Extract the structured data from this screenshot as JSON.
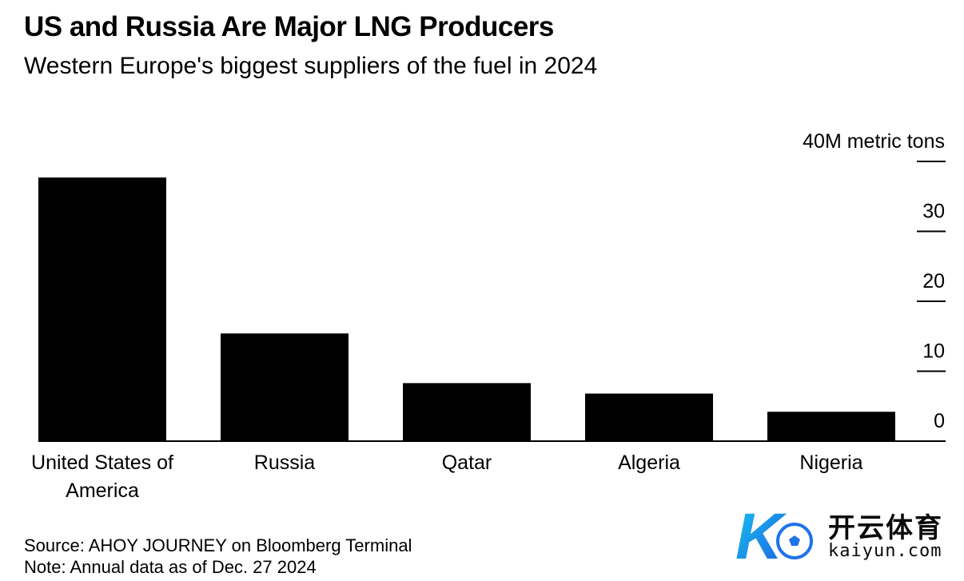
{
  "header": {
    "title": "US and Russia Are Major LNG Producers",
    "subtitle": "Western Europe's biggest suppliers of the fuel in 2024"
  },
  "footer": {
    "source": "Source: AHOY JOURNEY on Bloomberg Terminal",
    "note": "Note: Annual data as of Dec. 27 2024"
  },
  "watermark": {
    "brand_cn": "开云体育",
    "brand_en": "kaiyun.com",
    "logo_letter": "K"
  },
  "colors": {
    "bar": "#000000",
    "text": "#000000",
    "background": "#ffffff",
    "logo_blue": "#1e73e8",
    "logo_cyan": "#18c2f0"
  },
  "chart_data": {
    "type": "bar",
    "title": "US and Russia Are Major LNG Producers",
    "subtitle": "Western Europe's biggest suppliers of the fuel in 2024",
    "categories": [
      "United States of America",
      "Russia",
      "Qatar",
      "Algeria",
      "Nigeria"
    ],
    "category_label_lines": [
      [
        "United States of",
        "America"
      ],
      [
        "Russia"
      ],
      [
        "Qatar"
      ],
      [
        "Algeria"
      ],
      [
        "Nigeria"
      ]
    ],
    "values": [
      37.7,
      15.4,
      8.3,
      6.8,
      4.2
    ],
    "ylabel": "40M metric tons",
    "yticks": [
      0,
      10,
      20,
      30,
      40
    ],
    "ytick_labels": [
      "0",
      "10",
      "20",
      "30",
      "40M metric tons"
    ],
    "ylim": [
      0,
      40
    ],
    "axis_position": "right",
    "grid": false
  }
}
